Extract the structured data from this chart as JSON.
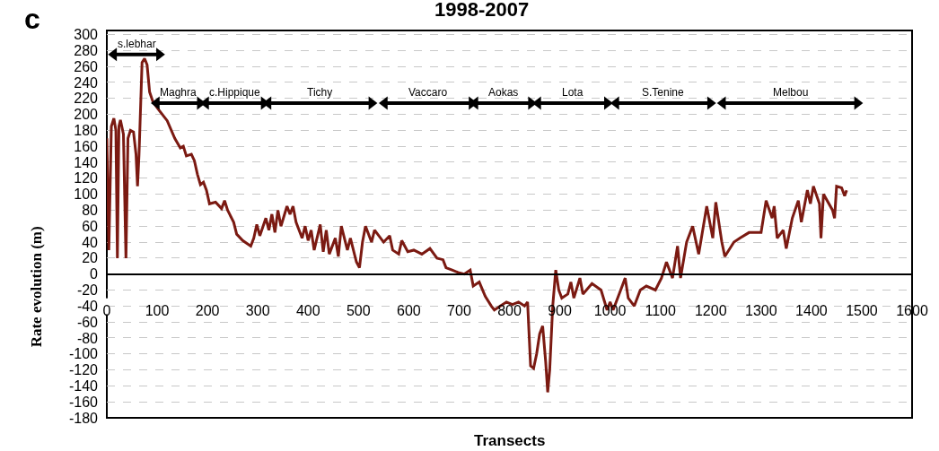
{
  "chart_data": {
    "type": "line",
    "title": "1998-2007",
    "xlabel": "Transects",
    "ylabel": "Rate evolution (m)",
    "annotations": [
      "c"
    ],
    "xlim": [
      0,
      1600
    ],
    "xticks": [
      0,
      100,
      200,
      300,
      400,
      500,
      600,
      700,
      800,
      900,
      1000,
      1100,
      1200,
      1300,
      1400,
      1500,
      1600
    ],
    "ylim": [
      -180,
      305
    ],
    "yticks": [
      -180,
      -160,
      -140,
      -120,
      -100,
      -80,
      -60,
      -40,
      -20,
      0,
      20,
      40,
      60,
      80,
      100,
      120,
      140,
      160,
      180,
      200,
      220,
      240,
      260,
      280,
      300
    ],
    "grid": "y",
    "legend": false,
    "series": [
      {
        "color": "#7b1a12",
        "x": [
          0,
          4,
          9,
          14,
          18,
          21,
          24,
          27,
          33,
          38,
          42,
          47,
          53,
          58,
          61,
          64,
          70,
          75,
          80,
          85,
          92,
          104,
          120,
          135,
          146,
          152,
          158,
          168,
          174,
          180,
          186,
          192,
          198,
          204,
          216,
          228,
          234,
          240,
          252,
          258,
          270,
          286,
          292,
          298,
          304,
          316,
          322,
          328,
          334,
          340,
          346,
          358,
          364,
          370,
          376,
          388,
          394,
          400,
          406,
          412,
          424,
          430,
          436,
          442,
          454,
          460,
          466,
          478,
          484,
          496,
          502,
          508,
          514,
          526,
          532,
          550,
          562,
          568,
          580,
          586,
          598,
          610,
          626,
          642,
          656,
          668,
          674,
          686,
          698,
          710,
          722,
          728,
          740,
          752,
          764,
          770,
          782,
          794,
          806,
          818,
          830,
          836,
          842,
          848,
          854,
          860,
          866,
          872,
          876,
          880,
          886,
          892,
          898,
          904,
          916,
          922,
          928,
          940,
          946,
          964,
          982,
          994,
          1000,
          1006,
          1018,
          1030,
          1036,
          1048,
          1060,
          1072,
          1090,
          1102,
          1112,
          1124,
          1134,
          1140,
          1152,
          1164,
          1176,
          1192,
          1204,
          1210,
          1222,
          1228,
          1246,
          1258,
          1276,
          1300,
          1310,
          1322,
          1326,
          1332,
          1344,
          1350,
          1362,
          1374,
          1380,
          1392,
          1398,
          1404,
          1416,
          1419,
          1424,
          1442,
          1446,
          1450,
          1460,
          1466,
          1470
        ],
        "values": [
          170,
          30,
          185,
          195,
          180,
          20,
          185,
          193,
          175,
          20,
          170,
          180,
          178,
          150,
          110,
          150,
          265,
          270,
          262,
          228,
          215,
          205,
          192,
          170,
          158,
          160,
          148,
          150,
          142,
          125,
          112,
          115,
          105,
          88,
          90,
          82,
          92,
          80,
          65,
          50,
          42,
          35,
          45,
          62,
          48,
          70,
          55,
          75,
          52,
          80,
          60,
          85,
          75,
          85,
          65,
          45,
          60,
          42,
          55,
          30,
          62,
          28,
          55,
          25,
          45,
          22,
          60,
          30,
          45,
          15,
          8,
          40,
          60,
          40,
          55,
          40,
          48,
          30,
          25,
          42,
          28,
          30,
          25,
          32,
          20,
          18,
          8,
          5,
          2,
          0,
          5,
          -15,
          -10,
          -28,
          -40,
          -45,
          -40,
          -35,
          -38,
          -35,
          -40,
          -35,
          -115,
          -118,
          -100,
          -75,
          -65,
          -110,
          -148,
          -120,
          -40,
          5,
          -20,
          -30,
          -25,
          -10,
          -30,
          -5,
          -25,
          -12,
          -20,
          -45,
          -35,
          -45,
          -25,
          -5,
          -30,
          -40,
          -20,
          -15,
          -20,
          -5,
          15,
          -5,
          35,
          -5,
          40,
          60,
          25,
          85,
          45,
          90,
          40,
          22,
          40,
          45,
          52,
          52,
          92,
          70,
          85,
          45,
          55,
          32,
          70,
          92,
          65,
          105,
          88,
          110,
          88,
          45,
          100,
          80,
          70,
          110,
          108,
          98,
          105
        ]
      },
      {
        "type": "line",
        "name": "s.lebhar",
        "color": "#000000",
        "marker": "triangle",
        "x": [
          14,
          104
        ],
        "values": [
          275,
          275
        ]
      },
      {
        "type": "line",
        "name": "Maghra",
        "color": "#000000",
        "marker": "triangle",
        "x": [
          99,
          185
        ],
        "values": [
          214,
          214
        ]
      },
      {
        "type": "line",
        "name": "c.Hippique",
        "color": "#000000",
        "marker": "triangle",
        "x": [
          197,
          312
        ],
        "values": [
          214,
          214
        ]
      },
      {
        "type": "line",
        "name": "Tichy",
        "color": "#000000",
        "marker": "triangle",
        "x": [
          321,
          526
        ],
        "values": [
          214,
          214
        ]
      },
      {
        "type": "line",
        "name": "Vaccaro",
        "color": "#000000",
        "marker": "triangle",
        "x": [
          552,
          725
        ],
        "values": [
          214,
          214
        ]
      },
      {
        "type": "line",
        "name": "Aokas",
        "color": "#000000",
        "marker": "triangle",
        "x": [
          732,
          843
        ],
        "values": [
          214,
          214
        ]
      },
      {
        "type": "line",
        "name": "Lota",
        "color": "#000000",
        "marker": "triangle",
        "x": [
          857,
          994
        ],
        "values": [
          214,
          214
        ]
      },
      {
        "type": "line",
        "name": "S.Tenine",
        "color": "#000000",
        "marker": "triangle",
        "x": [
          1012,
          1199
        ],
        "values": [
          214,
          214
        ]
      },
      {
        "type": "line",
        "name": "Melbou",
        "color": "#000000",
        "marker": "triangle",
        "x": [
          1224,
          1491
        ],
        "values": [
          214,
          214
        ]
      }
    ]
  }
}
